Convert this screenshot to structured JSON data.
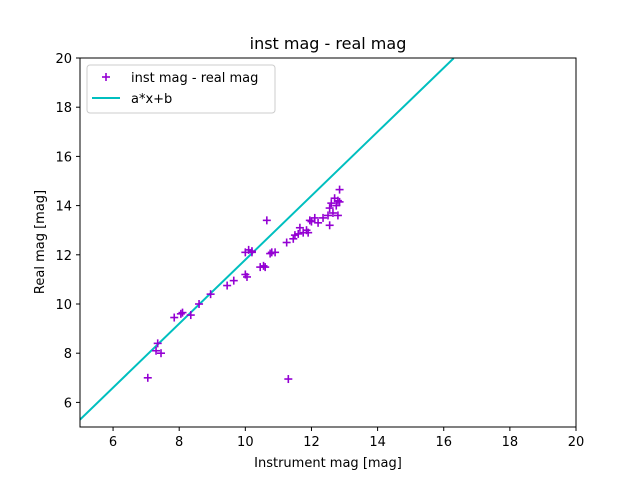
{
  "chart_data": {
    "type": "scatter",
    "title": "inst mag - real mag",
    "xlabel": "Instrument mag [mag]",
    "ylabel": "Real mag [mag]",
    "xlim": [
      5,
      20
    ],
    "ylim": [
      5,
      20
    ],
    "xticks": [
      6,
      8,
      10,
      12,
      14,
      16,
      18,
      20
    ],
    "yticks": [
      6,
      8,
      10,
      12,
      14,
      16,
      18,
      20
    ],
    "grid": false,
    "legend_position": "top-left",
    "series": [
      {
        "name": "inst mag - real mag",
        "type": "scatter",
        "marker": "plus",
        "color": "#9400d3",
        "points": [
          [
            7.05,
            7.0
          ],
          [
            7.3,
            8.1
          ],
          [
            7.35,
            8.4
          ],
          [
            7.45,
            8.0
          ],
          [
            7.85,
            9.45
          ],
          [
            8.05,
            9.6
          ],
          [
            8.1,
            9.65
          ],
          [
            8.35,
            9.55
          ],
          [
            8.6,
            10.0
          ],
          [
            8.95,
            10.4
          ],
          [
            9.45,
            10.75
          ],
          [
            9.65,
            10.95
          ],
          [
            10.0,
            11.2
          ],
          [
            10.05,
            11.1
          ],
          [
            10.0,
            12.1
          ],
          [
            10.1,
            12.2
          ],
          [
            10.2,
            12.15
          ],
          [
            10.2,
            12.1
          ],
          [
            10.45,
            11.5
          ],
          [
            10.55,
            11.55
          ],
          [
            10.6,
            11.5
          ],
          [
            10.65,
            13.4
          ],
          [
            10.75,
            12.05
          ],
          [
            10.8,
            12.1
          ],
          [
            10.9,
            12.1
          ],
          [
            11.25,
            12.5
          ],
          [
            11.3,
            6.95
          ],
          [
            11.45,
            12.65
          ],
          [
            11.5,
            12.8
          ],
          [
            11.6,
            12.85
          ],
          [
            11.65,
            13.1
          ],
          [
            11.75,
            12.9
          ],
          [
            11.85,
            13.0
          ],
          [
            11.9,
            12.9
          ],
          [
            11.95,
            13.4
          ],
          [
            12.0,
            13.35
          ],
          [
            12.1,
            13.5
          ],
          [
            12.2,
            13.3
          ],
          [
            12.35,
            13.5
          ],
          [
            12.5,
            13.6
          ],
          [
            12.55,
            13.2
          ],
          [
            12.55,
            13.9
          ],
          [
            12.6,
            14.1
          ],
          [
            12.65,
            13.7
          ],
          [
            12.7,
            14.3
          ],
          [
            12.75,
            14.0
          ],
          [
            12.8,
            13.6
          ],
          [
            12.8,
            14.2
          ],
          [
            12.85,
            14.15
          ],
          [
            12.85,
            14.65
          ]
        ]
      },
      {
        "name": "a*x+b",
        "type": "line",
        "color": "#00bfbf",
        "a": 1.3,
        "b": -1.2,
        "x": [
          5,
          16.3
        ]
      }
    ]
  }
}
